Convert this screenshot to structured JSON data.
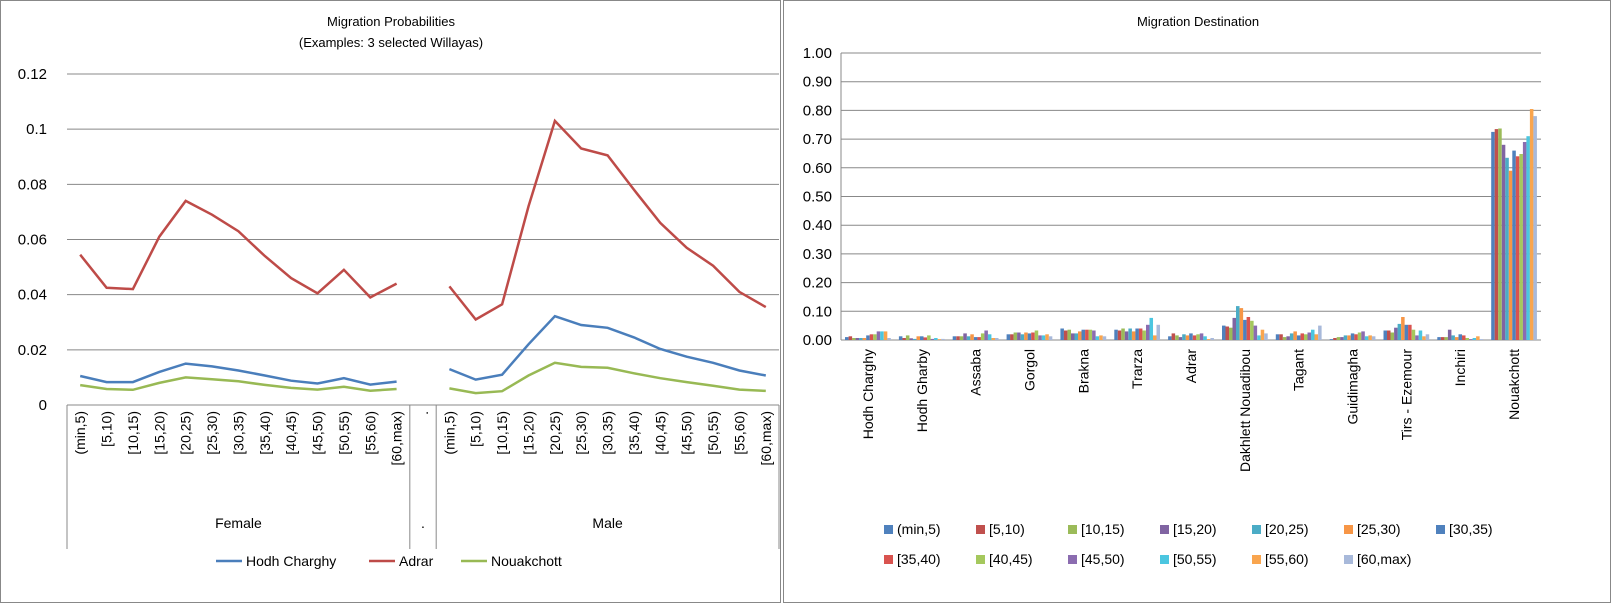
{
  "chart_data": [
    {
      "type": "line",
      "title": "Migration Probabilities",
      "subtitle": "(Examples: 3 selected Willayas)",
      "xlabel": "",
      "ylabel": "",
      "ylim": [
        0,
        0.12
      ],
      "yticks": [
        "0",
        "0.02",
        "0.04",
        "0.06",
        "0.08",
        "0.1",
        "0.12"
      ],
      "grid": true,
      "legend_position": "bottom",
      "groups": [
        {
          "name": "Female",
          "categories": [
            "(min,5)",
            "[5,10)",
            "[10,15)",
            "[15,20)",
            "[20,25)",
            "[25,30)",
            "[30,35)",
            "[35,40)",
            "[40,45)",
            "[45,50)",
            "[50,55)",
            "[55,60)",
            "[60,max)"
          ]
        },
        {
          "name": ".",
          "categories": [
            "."
          ]
        },
        {
          "name": "Male",
          "categories": [
            "(min,5)",
            "[5,10)",
            "[10,15)",
            "[15,20)",
            "[20,25)",
            "[25,30)",
            "[30,35)",
            "[35,40)",
            "[40,45)",
            "[45,50)",
            "[50,55)",
            "[55,60)",
            "[60,max)"
          ]
        }
      ],
      "series": [
        {
          "name": "Hodh Charghy",
          "color": "#4A7EBB",
          "female": [
            0.0105,
            0.0083,
            0.0083,
            0.012,
            0.015,
            0.014,
            0.0125,
            0.0107,
            0.0088,
            0.0078,
            0.0097,
            0.0074,
            0.0085
          ],
          "male": [
            0.013,
            0.0092,
            0.011,
            0.022,
            0.0322,
            0.029,
            0.028,
            0.0245,
            0.0203,
            0.0175,
            0.0153,
            0.0125,
            0.0107
          ]
        },
        {
          "name": "Adrar",
          "color": "#BE4B48",
          "female": [
            0.0545,
            0.0425,
            0.042,
            0.061,
            0.074,
            0.069,
            0.063,
            0.054,
            0.046,
            0.0405,
            0.049,
            0.039,
            0.044
          ],
          "male": [
            0.043,
            0.031,
            0.0365,
            0.072,
            0.103,
            0.093,
            0.0905,
            0.078,
            0.066,
            0.057,
            0.0505,
            0.041,
            0.0355
          ]
        },
        {
          "name": "Nouakchott",
          "color": "#98B954",
          "female": [
            0.0072,
            0.0058,
            0.0055,
            0.008,
            0.01,
            0.0093,
            0.0086,
            0.0073,
            0.0062,
            0.0056,
            0.0066,
            0.0052,
            0.0058
          ],
          "male": [
            0.006,
            0.0043,
            0.005,
            0.0107,
            0.0153,
            0.0138,
            0.0135,
            0.0115,
            0.0097,
            0.0083,
            0.007,
            0.0056,
            0.0051
          ]
        }
      ]
    },
    {
      "type": "bar",
      "title": "Migration Destination",
      "xlabel": "",
      "ylabel": "",
      "ylim": [
        0,
        1.0
      ],
      "yticks": [
        "0.00",
        "0.10",
        "0.20",
        "0.30",
        "0.40",
        "0.50",
        "0.60",
        "0.70",
        "0.80",
        "0.90",
        "1.00"
      ],
      "grid": true,
      "legend_position": "bottom",
      "categories": [
        "Hodh Charghy",
        "Hodh Gharby",
        "Assaba",
        "Gorgol",
        "Brakna",
        "Trarza",
        "Adrar",
        "Dakhlett Nouadibou",
        "Tagant",
        "Guidimagha",
        "Tirs - Ezemour",
        "Inchiri",
        "Nouakchott"
      ],
      "series_names": [
        "(min,5)",
        "[5,10)",
        "[10,15)",
        "[15,20)",
        "[20,25)",
        "[25,30)",
        "[30,35)",
        "[35,40)",
        "[40,45)",
        "[45,50)",
        "[50,55)",
        "[55,60)",
        "[60,max)"
      ],
      "series_colors": [
        "#4F81BD",
        "#C0504D",
        "#9BBB59",
        "#8064A2",
        "#4BACC6",
        "#F79646",
        "#4F81BD",
        "#D9534F",
        "#A5C85D",
        "#8B6CB0",
        "#4BC6E0",
        "#F9A54E",
        "#A8B9DA"
      ],
      "values_by_category": [
        [
          0.01,
          0.013,
          0.007,
          0.007,
          0.007,
          0.007,
          0.016,
          0.02,
          0.02,
          0.03,
          0.03,
          0.03,
          0.007
        ],
        [
          0.013,
          0.007,
          0.016,
          0.006,
          0.004,
          0.013,
          0.013,
          0.009,
          0.016,
          0.004,
          0.007,
          0.003,
          0.004
        ],
        [
          0.013,
          0.013,
          0.013,
          0.023,
          0.013,
          0.02,
          0.01,
          0.01,
          0.023,
          0.033,
          0.02,
          0.007,
          0.007
        ],
        [
          0.02,
          0.02,
          0.026,
          0.026,
          0.02,
          0.026,
          0.023,
          0.026,
          0.033,
          0.016,
          0.016,
          0.02,
          0.013
        ],
        [
          0.04,
          0.033,
          0.036,
          0.023,
          0.023,
          0.03,
          0.036,
          0.036,
          0.036,
          0.033,
          0.013,
          0.016,
          0.013
        ],
        [
          0.036,
          0.033,
          0.04,
          0.03,
          0.04,
          0.03,
          0.04,
          0.04,
          0.033,
          0.053,
          0.077,
          0.016,
          0.053
        ],
        [
          0.013,
          0.023,
          0.016,
          0.01,
          0.02,
          0.016,
          0.023,
          0.016,
          0.02,
          0.023,
          0.013,
          0.003,
          0.007
        ],
        [
          0.05,
          0.047,
          0.043,
          0.077,
          0.118,
          0.111,
          0.07,
          0.08,
          0.067,
          0.05,
          0.016,
          0.036,
          0.023
        ],
        [
          0.02,
          0.02,
          0.01,
          0.013,
          0.023,
          0.03,
          0.016,
          0.023,
          0.02,
          0.026,
          0.036,
          0.02,
          0.05
        ],
        [
          0.003,
          0.007,
          0.01,
          0.01,
          0.016,
          0.016,
          0.023,
          0.02,
          0.026,
          0.03,
          0.013,
          0.016,
          0.013
        ],
        [
          0.033,
          0.033,
          0.026,
          0.043,
          0.056,
          0.08,
          0.053,
          0.053,
          0.036,
          0.016,
          0.033,
          0.013,
          0.02
        ],
        [
          0.01,
          0.01,
          0.01,
          0.036,
          0.016,
          0.01,
          0.02,
          0.016,
          0.007,
          0.003,
          0.007,
          0.013,
          0.003
        ],
        [
          0.725,
          0.735,
          0.737,
          0.68,
          0.635,
          0.59,
          0.66,
          0.64,
          0.648,
          0.69,
          0.71,
          0.805,
          0.78
        ]
      ]
    }
  ]
}
